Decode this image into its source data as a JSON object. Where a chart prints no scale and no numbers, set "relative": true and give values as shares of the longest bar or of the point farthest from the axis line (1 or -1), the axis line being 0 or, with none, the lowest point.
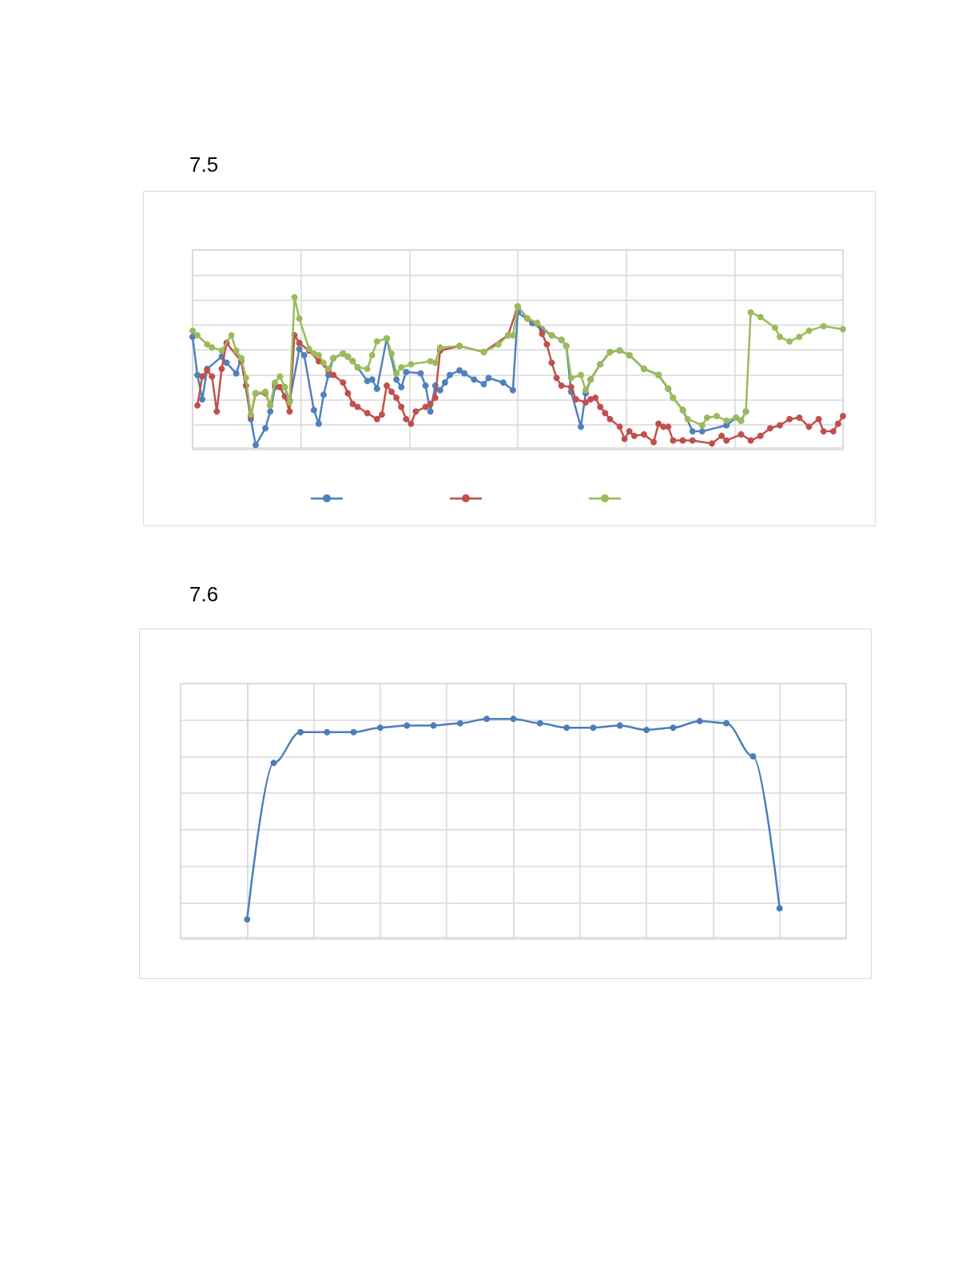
{
  "chart_data": [
    {
      "type": "line",
      "title": "7.5",
      "relative": true,
      "grid": true,
      "marker": "circle",
      "categories": [
        null,
        null,
        null,
        null,
        null,
        null,
        null,
        null,
        null,
        null,
        null,
        null,
        null,
        null,
        null,
        null,
        null,
        null,
        null,
        null,
        null,
        null,
        null,
        null,
        null,
        null,
        null,
        null,
        null,
        null,
        null,
        null,
        null,
        null,
        null,
        null,
        null,
        null,
        null,
        null,
        null,
        null,
        null,
        null,
        null,
        null,
        null,
        null,
        null,
        null,
        null,
        null,
        null,
        null,
        null,
        null,
        null,
        null,
        null,
        null,
        null,
        null,
        null,
        null,
        null,
        null,
        null,
        null,
        null,
        null,
        null,
        null,
        null,
        null,
        null,
        null,
        null,
        null,
        null,
        null,
        null,
        null,
        null,
        null,
        null,
        null,
        null,
        null,
        null,
        null,
        null,
        null,
        null,
        null,
        null,
        null,
        null,
        null,
        null,
        null,
        null,
        null,
        null,
        null,
        null,
        null,
        null,
        null,
        null,
        null,
        null,
        null,
        null,
        null,
        null,
        null,
        null,
        null,
        null,
        null,
        null,
        null,
        null,
        null,
        null,
        null,
        null,
        null,
        null,
        null,
        null,
        null,
        null,
        null,
        null
      ],
      "series": [
        {
          "color": "#4f81bd",
          "values": [
            0.74,
            0.49,
            0.33,
            0.53,
            null,
            null,
            0.61,
            0.57,
            null,
            0.5,
            0.6,
            null,
            0.2,
            0.03,
            null,
            0.14,
            0.25,
            0.41,
            null,
            0.41,
            0.32,
            null,
            0.66,
            0.62,
            null,
            0.26,
            0.17,
            0.36,
            0.49,
            0.6,
            null,
            0.63,
            0.61,
            0.58,
            0.54,
            null,
            0.45,
            0.46,
            0.4,
            null,
            0.73,
            null,
            0.46,
            0.41,
            0.51,
            null,
            null,
            0.5,
            0.42,
            0.25,
            0.42,
            0.39,
            0.44,
            0.49,
            null,
            0.52,
            0.5,
            null,
            0.46,
            null,
            0.43,
            0.47,
            null,
            null,
            0.44,
            null,
            0.39,
            0.9,
            null,
            null,
            0.83,
            null,
            0.79,
            null,
            0.75,
            null,
            0.72,
            0.68,
            0.38,
            null,
            0.15,
            0.37,
            0.46,
            null,
            0.56,
            null,
            0.64,
            null,
            0.65,
            null,
            0.62,
            null,
            null,
            0.53,
            null,
            null,
            0.49,
            null,
            0.4,
            0.34,
            null,
            0.26,
            null,
            0.12,
            null,
            0.12,
            null,
            null,
            null,
            null,
            0.16,
            null,
            0.21,
            0.19,
            0.25,
            null,
            null,
            null,
            null,
            null,
            null,
            null,
            null,
            null,
            null,
            null,
            null,
            null,
            null,
            null,
            null,
            null,
            null,
            null,
            null
          ]
        },
        {
          "color": "#c0504d",
          "values": [
            null,
            0.29,
            0.48,
            0.52,
            0.48,
            0.25,
            0.53,
            0.7,
            null,
            null,
            0.58,
            0.42,
            0.22,
            0.37,
            null,
            0.37,
            0.29,
            0.43,
            0.41,
            0.35,
            0.25,
            0.75,
            0.7,
            null,
            0.65,
            null,
            0.58,
            null,
            0.52,
            0.49,
            null,
            0.44,
            0.37,
            0.3,
            0.28,
            null,
            0.24,
            null,
            0.2,
            0.23,
            0.42,
            0.38,
            0.34,
            0.28,
            0.2,
            0.17,
            0.25,
            null,
            0.28,
            0.3,
            0.34,
            0.65,
            null,
            null,
            null,
            0.68,
            null,
            null,
            null,
            null,
            0.64,
            null,
            null,
            null,
            null,
            0.75,
            null,
            0.94,
            null,
            0.86,
            null,
            0.83,
            0.76,
            0.69,
            0.57,
            0.47,
            0.42,
            null,
            0.41,
            0.33,
            null,
            0.31,
            0.33,
            0.34,
            0.28,
            0.24,
            0.2,
            null,
            0.15,
            0.07,
            0.12,
            0.09,
            null,
            0.1,
            null,
            0.05,
            0.17,
            0.15,
            0.15,
            0.06,
            null,
            0.06,
            null,
            0.06,
            null,
            null,
            null,
            0.04,
            null,
            0.09,
            0.06,
            null,
            null,
            0.1,
            null,
            0.06,
            null,
            0.09,
            null,
            0.14,
            null,
            0.16,
            null,
            0.2,
            null,
            0.21,
            null,
            0.15,
            null,
            0.2,
            0.12,
            null,
            0.12,
            0.17,
            0.22
          ]
        },
        {
          "color": "#9bbb59",
          "values": [
            0.78,
            0.75,
            null,
            0.69,
            0.67,
            null,
            0.65,
            null,
            0.75,
            0.65,
            0.6,
            0.47,
            0.23,
            0.37,
            null,
            0.38,
            0.29,
            0.44,
            0.48,
            0.41,
            0.31,
            1,
            0.86,
            null,
            0.66,
            0.63,
            0.62,
            0.57,
            0.53,
            0.6,
            null,
            0.63,
            0.61,
            0.58,
            0.54,
            null,
            0.53,
            0.62,
            0.71,
            null,
            0.73,
            0.63,
            0.5,
            0.54,
            null,
            0.56,
            null,
            null,
            null,
            0.58,
            0.57,
            0.67,
            null,
            null,
            null,
            0.68,
            null,
            null,
            null,
            null,
            0.64,
            null,
            null,
            0.69,
            null,
            0.75,
            0.75,
            0.94,
            null,
            0.86,
            null,
            0.83,
            null,
            null,
            0.75,
            null,
            0.72,
            0.68,
            0.47,
            null,
            0.49,
            0.39,
            0.46,
            null,
            0.56,
            null,
            0.64,
            null,
            0.65,
            null,
            0.62,
            null,
            null,
            0.53,
            null,
            null,
            0.49,
            null,
            0.4,
            0.34,
            null,
            0.26,
            0.2,
            null,
            null,
            0.16,
            0.21,
            null,
            0.22,
            null,
            0.19,
            null,
            0.21,
            0.19,
            0.25,
            0.9,
            null,
            0.87,
            null,
            null,
            0.8,
            0.74,
            null,
            0.71,
            null,
            0.74,
            null,
            0.78,
            null,
            null,
            0.81,
            null,
            null,
            null,
            0.79
          ]
        }
      ]
    },
    {
      "type": "line",
      "title": "7.6",
      "relative": true,
      "grid": true,
      "marker": "circle",
      "categories": [
        null,
        null,
        null,
        null,
        null,
        null,
        null,
        null,
        null,
        null,
        null,
        null,
        null,
        null,
        null,
        null,
        null,
        null,
        null,
        null,
        null
      ],
      "series": [
        {
          "color": "#4a7ebb",
          "values": [
            0.09,
            0.8,
            0.94,
            0.94,
            0.94,
            0.96,
            0.97,
            0.97,
            0.98,
            1,
            1,
            0.98,
            0.96,
            0.96,
            0.97,
            0.95,
            0.96,
            0.99,
            0.98,
            0.83,
            0.14
          ]
        }
      ]
    }
  ]
}
